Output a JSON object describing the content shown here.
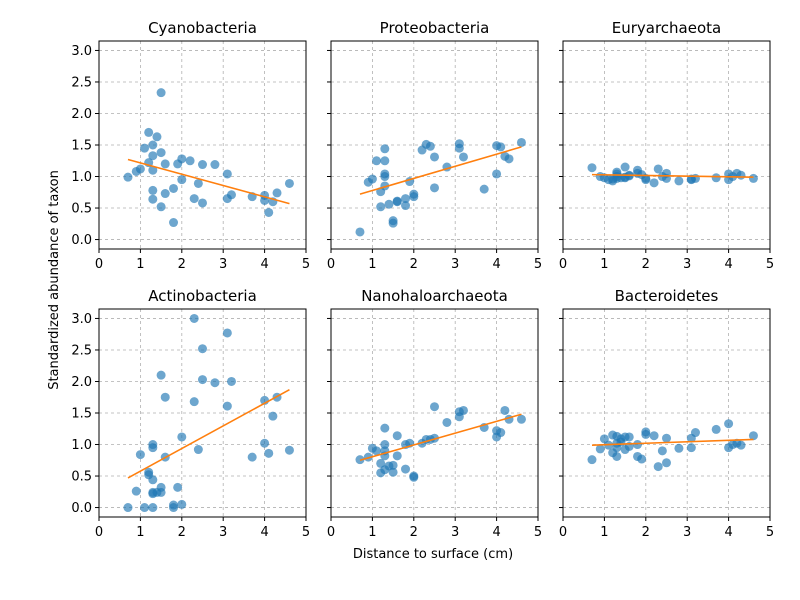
{
  "chart_data": {
    "type": "scatter",
    "xlabel": "Distance to surface (cm)",
    "ylabel": "Standardized abundance of taxon",
    "xlim": [
      0,
      5
    ],
    "ylim": [
      -0.15,
      3.15
    ],
    "xticks": [
      "0",
      "1",
      "2",
      "3",
      "4",
      "5"
    ],
    "yticks": [
      "0.0",
      "0.5",
      "1.0",
      "1.5",
      "2.0",
      "2.5",
      "3.0"
    ],
    "grid": true,
    "colors": {
      "points": "#1f77b4",
      "fit": "#ff7f0e",
      "grid": "#b0b0b0"
    },
    "panels": [
      {
        "title": "Cyanobacteria",
        "points": [
          [
            0.7,
            0.99
          ],
          [
            0.9,
            1.08
          ],
          [
            1.0,
            1.12
          ],
          [
            1.1,
            1.45
          ],
          [
            1.2,
            1.22
          ],
          [
            1.2,
            1.7
          ],
          [
            1.3,
            1.1
          ],
          [
            1.3,
            1.33
          ],
          [
            1.3,
            1.5
          ],
          [
            1.3,
            0.78
          ],
          [
            1.3,
            0.64
          ],
          [
            1.4,
            1.63
          ],
          [
            1.5,
            2.33
          ],
          [
            1.5,
            1.38
          ],
          [
            1.5,
            0.52
          ],
          [
            1.6,
            1.2
          ],
          [
            1.6,
            0.73
          ],
          [
            1.8,
            0.81
          ],
          [
            1.8,
            0.27
          ],
          [
            1.9,
            1.2
          ],
          [
            2.0,
            1.28
          ],
          [
            2.0,
            0.95
          ],
          [
            2.2,
            1.25
          ],
          [
            2.3,
            0.65
          ],
          [
            2.4,
            0.89
          ],
          [
            2.5,
            1.19
          ],
          [
            2.5,
            0.58
          ],
          [
            2.8,
            1.19
          ],
          [
            3.1,
            1.04
          ],
          [
            3.1,
            0.65
          ],
          [
            3.2,
            0.71
          ],
          [
            3.7,
            0.68
          ],
          [
            4.0,
            0.7
          ],
          [
            4.0,
            0.62
          ],
          [
            4.1,
            0.43
          ],
          [
            4.2,
            0.6
          ],
          [
            4.3,
            0.74
          ],
          [
            4.6,
            0.89
          ]
        ],
        "fit": [
          [
            0.7,
            1.27
          ],
          [
            4.6,
            0.57
          ]
        ]
      },
      {
        "title": "Proteobacteria",
        "points": [
          [
            0.7,
            0.12
          ],
          [
            0.9,
            0.91
          ],
          [
            1.0,
            0.96
          ],
          [
            1.1,
            1.25
          ],
          [
            1.2,
            0.52
          ],
          [
            1.2,
            0.76
          ],
          [
            1.3,
            1.44
          ],
          [
            1.3,
            1.25
          ],
          [
            1.3,
            1.04
          ],
          [
            1.3,
            1.0
          ],
          [
            1.3,
            0.85
          ],
          [
            1.4,
            0.56
          ],
          [
            1.5,
            0.3
          ],
          [
            1.5,
            0.26
          ],
          [
            1.6,
            0.6
          ],
          [
            1.6,
            0.61
          ],
          [
            1.8,
            0.54
          ],
          [
            1.8,
            0.65
          ],
          [
            1.9,
            0.92
          ],
          [
            2.0,
            0.72
          ],
          [
            2.0,
            0.68
          ],
          [
            2.2,
            1.42
          ],
          [
            2.3,
            1.51
          ],
          [
            2.4,
            1.48
          ],
          [
            2.5,
            1.31
          ],
          [
            2.5,
            0.82
          ],
          [
            2.8,
            1.15
          ],
          [
            3.1,
            1.52
          ],
          [
            3.1,
            1.45
          ],
          [
            3.2,
            1.31
          ],
          [
            3.7,
            0.8
          ],
          [
            4.0,
            1.04
          ],
          [
            4.0,
            1.49
          ],
          [
            4.1,
            1.47
          ],
          [
            4.2,
            1.32
          ],
          [
            4.3,
            1.28
          ],
          [
            4.6,
            1.54
          ]
        ],
        "fit": [
          [
            0.7,
            0.72
          ],
          [
            4.6,
            1.47
          ]
        ]
      },
      {
        "title": "Euryarchaeota",
        "points": [
          [
            0.7,
            1.14
          ],
          [
            0.9,
            1.0
          ],
          [
            1.0,
            0.98
          ],
          [
            1.1,
            0.95
          ],
          [
            1.2,
            0.96
          ],
          [
            1.2,
            0.93
          ],
          [
            1.3,
            1.07
          ],
          [
            1.3,
            1.04
          ],
          [
            1.3,
            1.0
          ],
          [
            1.3,
            0.97
          ],
          [
            1.4,
            0.98
          ],
          [
            1.5,
            1.15
          ],
          [
            1.5,
            0.99
          ],
          [
            1.5,
            0.98
          ],
          [
            1.6,
            1.02
          ],
          [
            1.6,
            1.01
          ],
          [
            1.8,
            1.1
          ],
          [
            1.8,
            1.05
          ],
          [
            1.9,
            1.03
          ],
          [
            2.0,
            0.97
          ],
          [
            2.0,
            0.95
          ],
          [
            2.2,
            0.9
          ],
          [
            2.3,
            1.12
          ],
          [
            2.4,
            1.0
          ],
          [
            2.5,
            1.05
          ],
          [
            2.5,
            0.97
          ],
          [
            2.8,
            0.93
          ],
          [
            3.1,
            0.96
          ],
          [
            3.1,
            0.95
          ],
          [
            3.2,
            0.97
          ],
          [
            3.7,
            0.98
          ],
          [
            4.0,
            1.04
          ],
          [
            4.0,
            0.95
          ],
          [
            4.1,
            1.0
          ],
          [
            4.2,
            1.05
          ],
          [
            4.3,
            1.02
          ],
          [
            4.6,
            0.97
          ]
        ],
        "fit": [
          [
            0.7,
            1.03
          ],
          [
            4.6,
            0.99
          ]
        ]
      },
      {
        "title": "Actinobacteria",
        "points": [
          [
            0.7,
            0.0
          ],
          [
            0.9,
            0.26
          ],
          [
            1.0,
            0.84
          ],
          [
            1.1,
            0.0
          ],
          [
            1.2,
            0.56
          ],
          [
            1.2,
            0.52
          ],
          [
            1.3,
            0.22
          ],
          [
            1.3,
            0.24
          ],
          [
            1.3,
            0.0
          ],
          [
            1.3,
            0.95
          ],
          [
            1.3,
            1.0
          ],
          [
            1.3,
            0.44
          ],
          [
            1.4,
            0.24
          ],
          [
            1.5,
            0.32
          ],
          [
            1.5,
            0.24
          ],
          [
            1.5,
            2.1
          ],
          [
            1.6,
            1.75
          ],
          [
            1.6,
            0.8
          ],
          [
            1.8,
            0.0
          ],
          [
            1.8,
            0.04
          ],
          [
            1.9,
            0.32
          ],
          [
            2.0,
            1.12
          ],
          [
            2.0,
            0.05
          ],
          [
            2.3,
            3.0
          ],
          [
            2.3,
            1.68
          ],
          [
            2.4,
            0.92
          ],
          [
            2.5,
            2.52
          ],
          [
            2.5,
            2.03
          ],
          [
            2.8,
            1.98
          ],
          [
            3.1,
            2.77
          ],
          [
            3.1,
            1.61
          ],
          [
            3.2,
            2.0
          ],
          [
            3.7,
            0.8
          ],
          [
            4.0,
            1.7
          ],
          [
            4.0,
            1.02
          ],
          [
            4.1,
            0.86
          ],
          [
            4.2,
            1.45
          ],
          [
            4.3,
            1.75
          ],
          [
            4.6,
            0.91
          ]
        ],
        "fit": [
          [
            0.7,
            0.47
          ],
          [
            4.6,
            1.87
          ]
        ]
      },
      {
        "title": "Nanohaloarchaeota",
        "points": [
          [
            0.7,
            0.76
          ],
          [
            0.9,
            0.8
          ],
          [
            1.0,
            0.94
          ],
          [
            1.1,
            0.9
          ],
          [
            1.2,
            0.55
          ],
          [
            1.2,
            0.7
          ],
          [
            1.3,
            1.26
          ],
          [
            1.3,
            0.6
          ],
          [
            1.3,
            0.82
          ],
          [
            1.3,
            0.9
          ],
          [
            1.3,
            1.0
          ],
          [
            1.4,
            0.66
          ],
          [
            1.5,
            0.56
          ],
          [
            1.5,
            0.67
          ],
          [
            1.6,
            1.14
          ],
          [
            1.6,
            0.82
          ],
          [
            1.8,
            0.61
          ],
          [
            1.8,
            1.0
          ],
          [
            1.9,
            1.02
          ],
          [
            2.0,
            0.48
          ],
          [
            2.0,
            0.5
          ],
          [
            2.2,
            1.02
          ],
          [
            2.3,
            1.08
          ],
          [
            2.4,
            1.08
          ],
          [
            2.5,
            1.6
          ],
          [
            2.5,
            1.1
          ],
          [
            2.8,
            1.35
          ],
          [
            3.1,
            1.52
          ],
          [
            3.1,
            1.44
          ],
          [
            3.2,
            1.54
          ],
          [
            3.7,
            1.27
          ],
          [
            4.0,
            1.12
          ],
          [
            4.0,
            1.22
          ],
          [
            4.1,
            1.19
          ],
          [
            4.2,
            1.54
          ],
          [
            4.3,
            1.4
          ],
          [
            4.6,
            1.4
          ]
        ],
        "fit": [
          [
            0.7,
            0.75
          ],
          [
            4.6,
            1.48
          ]
        ]
      },
      {
        "title": "Bacteroidetes",
        "points": [
          [
            0.7,
            0.76
          ],
          [
            0.9,
            0.93
          ],
          [
            1.0,
            1.09
          ],
          [
            1.1,
            0.99
          ],
          [
            1.2,
            0.87
          ],
          [
            1.2,
            1.15
          ],
          [
            1.3,
            1.13
          ],
          [
            1.3,
            1.02
          ],
          [
            1.3,
            0.95
          ],
          [
            1.3,
            0.81
          ],
          [
            1.4,
            1.09
          ],
          [
            1.4,
            1.04
          ],
          [
            1.5,
            1.12
          ],
          [
            1.5,
            0.92
          ],
          [
            1.6,
            0.97
          ],
          [
            1.6,
            1.12
          ],
          [
            1.8,
            1.0
          ],
          [
            1.8,
            0.81
          ],
          [
            1.9,
            0.77
          ],
          [
            2.0,
            1.2
          ],
          [
            2.0,
            1.16
          ],
          [
            2.2,
            1.14
          ],
          [
            2.3,
            0.65
          ],
          [
            2.4,
            0.9
          ],
          [
            2.5,
            1.1
          ],
          [
            2.5,
            0.71
          ],
          [
            2.8,
            0.94
          ],
          [
            3.1,
            1.1
          ],
          [
            3.1,
            0.95
          ],
          [
            3.2,
            1.19
          ],
          [
            3.7,
            1.24
          ],
          [
            4.0,
            1.33
          ],
          [
            4.0,
            0.95
          ],
          [
            4.1,
            1.0
          ],
          [
            4.2,
            1.02
          ],
          [
            4.3,
            0.99
          ],
          [
            4.6,
            1.14
          ]
        ],
        "fit": [
          [
            0.7,
            0.99
          ],
          [
            4.6,
            1.08
          ]
        ]
      }
    ]
  }
}
